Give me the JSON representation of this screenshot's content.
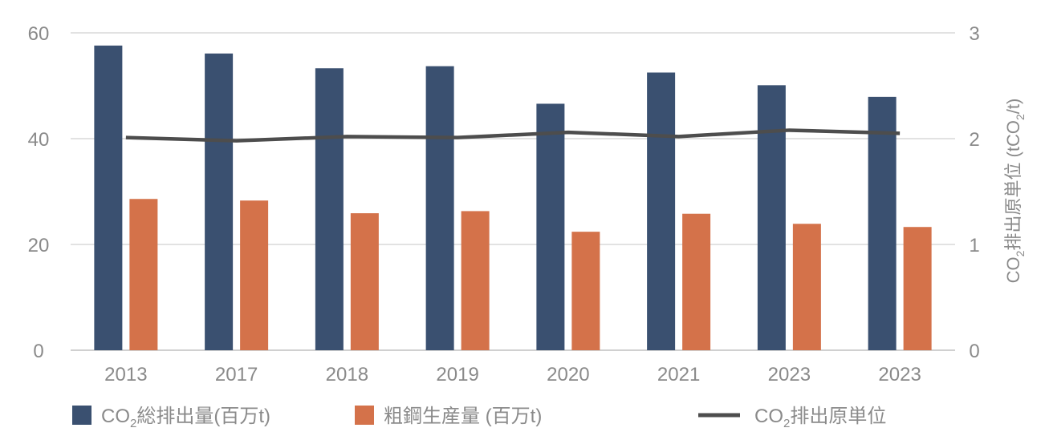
{
  "chart_data": {
    "type": "bar",
    "categories": [
      "2013",
      "2017",
      "2018",
      "2019",
      "2020",
      "2021",
      "2023",
      "2023"
    ],
    "series": [
      {
        "name": "CO2総排出量(百万t)",
        "kind": "bar",
        "axis": "left",
        "color": "#3a5070",
        "values": [
          57.6,
          56.1,
          53.3,
          53.7,
          46.6,
          52.5,
          50.1,
          47.9
        ]
      },
      {
        "name": "粗鋼生産量 (百万t)",
        "kind": "bar",
        "axis": "left",
        "color": "#d4724a",
        "values": [
          28.6,
          28.3,
          25.9,
          26.3,
          22.4,
          25.8,
          23.9,
          23.3
        ]
      },
      {
        "name": "CO2排出原単位",
        "kind": "line",
        "axis": "right",
        "color": "#4d4d4d",
        "values": [
          2.01,
          1.98,
          2.02,
          2.01,
          2.06,
          2.02,
          2.08,
          2.05
        ]
      }
    ],
    "ylim": [
      0,
      60
    ],
    "y_ticks": [
      0,
      20,
      40,
      60
    ],
    "y2label": "CO2排出原単位 (tCO2/t)",
    "y2lim": [
      0,
      3
    ],
    "y2_ticks": [
      0,
      1,
      2,
      3
    ],
    "grid": true,
    "legend_position": "bottom"
  }
}
